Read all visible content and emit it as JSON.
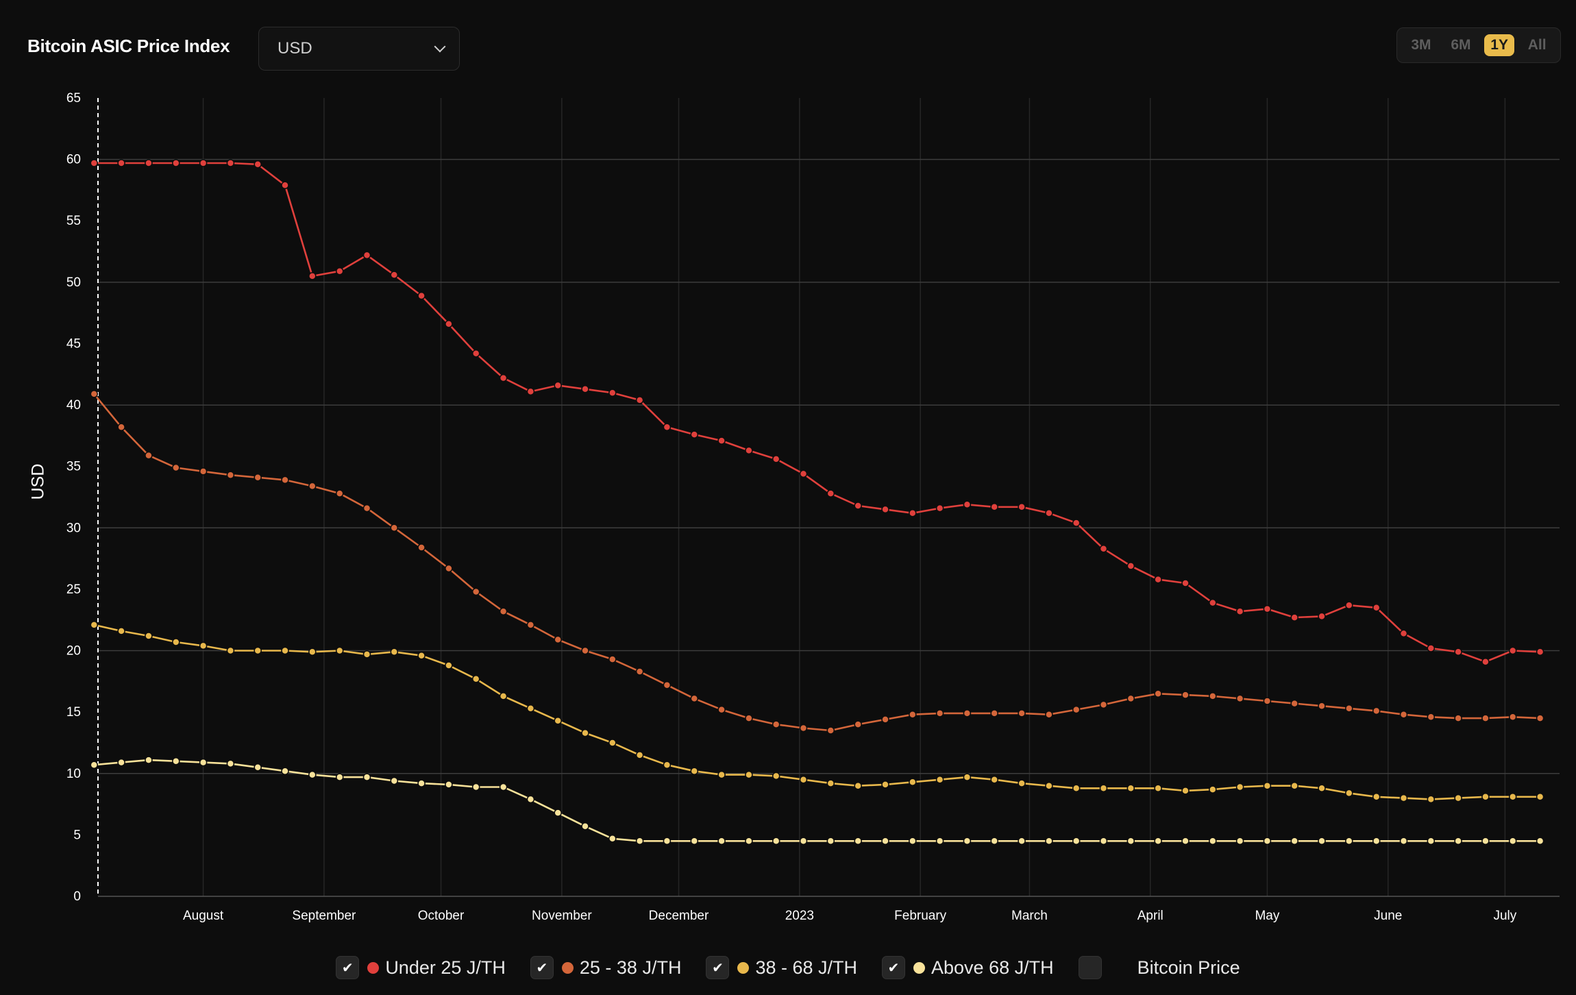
{
  "header": {
    "title": "Bitcoin ASIC Price Index",
    "currency": {
      "selected": "USD"
    },
    "ranges": [
      {
        "label": "3M",
        "active": false
      },
      {
        "label": "6M",
        "active": false
      },
      {
        "label": "1Y",
        "active": true
      },
      {
        "label": "All",
        "active": false
      }
    ]
  },
  "legend": [
    {
      "label": "Under 25 J/TH",
      "checked": true,
      "color": "#e0403c"
    },
    {
      "label": "25 - 38 J/TH",
      "checked": true,
      "color": "#d4663a"
    },
    {
      "label": "38 - 68 J/TH",
      "checked": true,
      "color": "#e8b84c"
    },
    {
      "label": "Above 68 J/TH",
      "checked": true,
      "color": "#f8e29a"
    },
    {
      "label": "Bitcoin Price",
      "checked": false,
      "color": ""
    }
  ],
  "chart_data": {
    "type": "line",
    "ylabel": "USD",
    "ylim": [
      0,
      65
    ],
    "yticks": [
      0,
      5,
      10,
      15,
      20,
      25,
      30,
      35,
      40,
      45,
      50,
      55,
      60,
      65
    ],
    "xticks": [
      "August",
      "September",
      "October",
      "November",
      "December",
      "2023",
      "February",
      "March",
      "April",
      "May",
      "June",
      "July"
    ],
    "grid": true,
    "legend_position": "bottom",
    "x_start": "2022-07-05",
    "x_end": "2023-07-15",
    "xtick_dates": [
      "2022-08-01",
      "2022-09-01",
      "2022-10-01",
      "2022-11-01",
      "2022-12-01",
      "2023-01-01",
      "2023-02-01",
      "2023-03-01",
      "2023-04-01",
      "2023-05-01",
      "2023-06-01",
      "2023-07-01"
    ],
    "x": [
      "2022-07-04",
      "2022-07-11",
      "2022-07-18",
      "2022-07-25",
      "2022-08-01",
      "2022-08-08",
      "2022-08-15",
      "2022-08-22",
      "2022-08-29",
      "2022-09-05",
      "2022-09-12",
      "2022-09-19",
      "2022-09-26",
      "2022-10-03",
      "2022-10-10",
      "2022-10-17",
      "2022-10-24",
      "2022-10-31",
      "2022-11-07",
      "2022-11-14",
      "2022-11-21",
      "2022-11-28",
      "2022-12-05",
      "2022-12-12",
      "2022-12-19",
      "2022-12-26",
      "2023-01-02",
      "2023-01-09",
      "2023-01-16",
      "2023-01-23",
      "2023-01-30",
      "2023-02-06",
      "2023-02-13",
      "2023-02-20",
      "2023-02-27",
      "2023-03-06",
      "2023-03-13",
      "2023-03-20",
      "2023-03-27",
      "2023-04-03",
      "2023-04-10",
      "2023-04-17",
      "2023-04-24",
      "2023-05-01",
      "2023-05-08",
      "2023-05-15",
      "2023-05-22",
      "2023-05-29",
      "2023-06-05",
      "2023-06-12",
      "2023-06-19",
      "2023-06-26",
      "2023-07-03",
      "2023-07-10"
    ],
    "series": [
      {
        "name": "Under 25 J/TH",
        "color": "#e0403c",
        "values": [
          59.7,
          59.7,
          59.7,
          59.7,
          59.7,
          59.7,
          59.6,
          57.9,
          50.5,
          50.9,
          52.2,
          50.6,
          48.9,
          46.6,
          44.2,
          42.2,
          41.1,
          41.6,
          41.3,
          41.0,
          40.4,
          38.2,
          37.6,
          37.1,
          36.3,
          35.6,
          34.4,
          32.8,
          31.8,
          31.5,
          31.2,
          31.6,
          31.9,
          31.7,
          31.7,
          31.2,
          30.4,
          28.3,
          26.9,
          25.8,
          25.5,
          23.9,
          23.2,
          23.4,
          22.7,
          22.8,
          23.7,
          23.5,
          21.4,
          20.2,
          19.9,
          19.1,
          20.0,
          19.9
        ]
      },
      {
        "name": "25 - 38 J/TH",
        "color": "#d4663a",
        "values": [
          40.9,
          38.2,
          35.9,
          34.9,
          34.6,
          34.3,
          34.1,
          33.9,
          33.4,
          32.8,
          31.6,
          30.0,
          28.4,
          26.7,
          24.8,
          23.2,
          22.1,
          20.9,
          20.0,
          19.3,
          18.3,
          17.2,
          16.1,
          15.2,
          14.5,
          14.0,
          13.7,
          13.5,
          14.0,
          14.4,
          14.8,
          14.9,
          14.9,
          14.9,
          14.9,
          14.8,
          15.2,
          15.6,
          16.1,
          16.5,
          16.4,
          16.3,
          16.1,
          15.9,
          15.7,
          15.5,
          15.3,
          15.1,
          14.8,
          14.6,
          14.5,
          14.5,
          14.6,
          14.5
        ]
      },
      {
        "name": "38 - 68 J/TH",
        "color": "#e8b84c",
        "values": [
          22.1,
          21.6,
          21.2,
          20.7,
          20.4,
          20.0,
          20.0,
          20.0,
          19.9,
          20.0,
          19.7,
          19.9,
          19.6,
          18.8,
          17.7,
          16.3,
          15.3,
          14.3,
          13.3,
          12.5,
          11.5,
          10.7,
          10.2,
          9.9,
          9.9,
          9.8,
          9.5,
          9.2,
          9.0,
          9.1,
          9.3,
          9.5,
          9.7,
          9.5,
          9.2,
          9.0,
          8.8,
          8.8,
          8.8,
          8.8,
          8.6,
          8.7,
          8.9,
          9.0,
          9.0,
          8.8,
          8.4,
          8.1,
          8.0,
          7.9,
          8.0,
          8.1,
          8.1,
          8.1
        ]
      },
      {
        "name": "Above 68 J/TH",
        "color": "#f8e29a",
        "values": [
          10.7,
          10.9,
          11.1,
          11.0,
          10.9,
          10.8,
          10.5,
          10.2,
          9.9,
          9.7,
          9.7,
          9.4,
          9.2,
          9.1,
          8.9,
          8.9,
          7.9,
          6.8,
          5.7,
          4.7,
          4.5,
          4.5,
          4.5,
          4.5,
          4.5,
          4.5,
          4.5,
          4.5,
          4.5,
          4.5,
          4.5,
          4.5,
          4.5,
          4.5,
          4.5,
          4.5,
          4.5,
          4.5,
          4.5,
          4.5,
          4.5,
          4.5,
          4.5,
          4.5,
          4.5,
          4.5,
          4.5,
          4.5,
          4.5,
          4.5,
          4.5,
          4.5,
          4.5,
          4.5
        ]
      }
    ]
  }
}
